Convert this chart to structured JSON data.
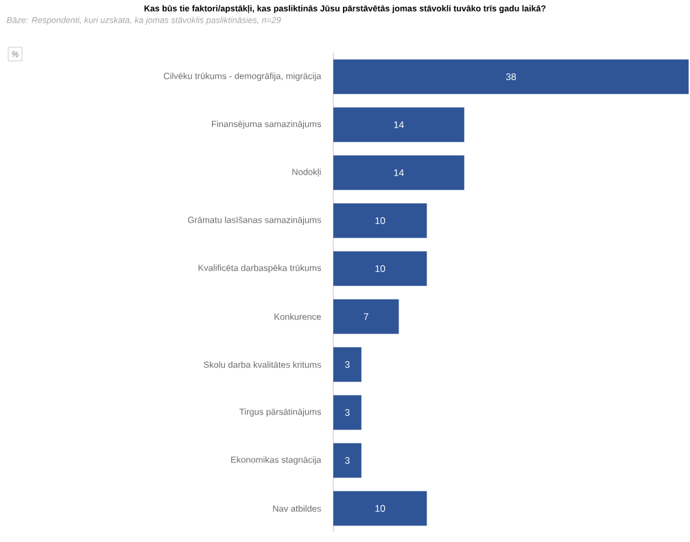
{
  "chart_data": {
    "type": "bar",
    "orientation": "horizontal",
    "title": "Kas būs tie faktori/apstākļi, kas pasliktinās Jūsu pārstāvētās jomas stāvokli tuvāko trīs gadu laikā?",
    "subtitle": "Bāze: Respondenti, kuri uzskata, ka jomas stāvoklis pasliktināsies, n=29",
    "annotations": [
      "%"
    ],
    "categories": [
      "Cilvēku trūkums - demogrāfija, migrācija",
      "Finansējuma samazinājums",
      "Nodokļi",
      "Grāmatu lasīšanas samazinājums",
      "Kvalificēta darbaspēka trūkums",
      "Konkurence",
      "Skolu darba kvalitātes kritums",
      "Tirgus pārsātinājums",
      "Ekonomikas stagnācija",
      "Nav atbildes"
    ],
    "values": [
      38,
      14,
      14,
      10,
      10,
      7,
      3,
      3,
      3,
      10
    ],
    "color": "#2f5597",
    "xlim": [
      0,
      38
    ],
    "data_labels": true,
    "tick_labels": "y"
  }
}
